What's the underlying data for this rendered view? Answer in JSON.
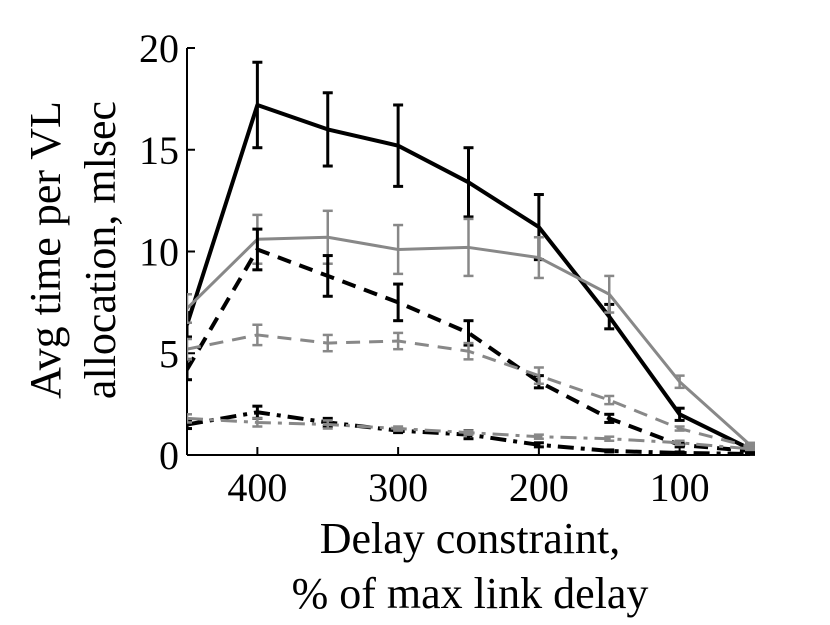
{
  "chart_data": {
    "type": "line",
    "title": "",
    "xlabel_lines": [
      "Delay constraint,",
      "% of max link delay"
    ],
    "ylabel_lines": [
      "Avg time per VL",
      "allocation, mlsec"
    ],
    "x_reversed": true,
    "xlim": [
      450,
      50
    ],
    "ylim": [
      0,
      20
    ],
    "xticks": [
      400,
      300,
      200,
      100
    ],
    "yticks": [
      0,
      5,
      10,
      15,
      20
    ],
    "grid": false,
    "legend": "none",
    "x": [
      450,
      400,
      350,
      300,
      250,
      200,
      150,
      100,
      50
    ],
    "series": [
      {
        "color": "#000000",
        "dash": "solid",
        "values": [
          6.4,
          17.2,
          16.0,
          15.2,
          13.4,
          11.2,
          6.8,
          2.0,
          0.3
        ],
        "errors": [
          0.6,
          2.1,
          1.8,
          2.0,
          1.7,
          1.6,
          0.6,
          0.3,
          0.1
        ]
      },
      {
        "color": "#888888",
        "dash": "solid",
        "values": [
          7.2,
          10.6,
          10.7,
          10.1,
          10.2,
          9.7,
          7.9,
          3.6,
          0.5
        ],
        "errors": [
          0.7,
          1.2,
          1.3,
          1.2,
          1.4,
          1.0,
          0.9,
          0.3,
          0.1
        ]
      },
      {
        "color": "#000000",
        "dash": "dashed",
        "values": [
          4.2,
          10.1,
          8.8,
          7.5,
          6.0,
          3.6,
          1.8,
          0.5,
          0.2
        ],
        "errors": [
          0.5,
          1.0,
          1.0,
          0.9,
          0.6,
          0.3,
          0.2,
          0.1,
          0.1
        ]
      },
      {
        "color": "#888888",
        "dash": "dashed",
        "values": [
          5.2,
          5.9,
          5.5,
          5.6,
          5.1,
          3.9,
          2.7,
          1.3,
          0.4
        ],
        "errors": [
          0.5,
          0.5,
          0.4,
          0.4,
          0.4,
          0.4,
          0.2,
          0.1,
          0.1
        ]
      },
      {
        "color": "#000000",
        "dash": "dashdot",
        "values": [
          1.5,
          2.1,
          1.6,
          1.2,
          1.0,
          0.5,
          0.2,
          0.1,
          0.05
        ],
        "errors": [
          0.2,
          0.3,
          0.2,
          0.1,
          0.2,
          0.1,
          0.05,
          0.05,
          0.02
        ]
      },
      {
        "color": "#888888",
        "dash": "dashdot",
        "values": [
          1.8,
          1.6,
          1.5,
          1.3,
          1.1,
          0.9,
          0.8,
          0.6,
          0.3
        ],
        "errors": [
          0.2,
          0.2,
          0.2,
          0.1,
          0.1,
          0.1,
          0.1,
          0.1,
          0.05
        ]
      }
    ]
  }
}
